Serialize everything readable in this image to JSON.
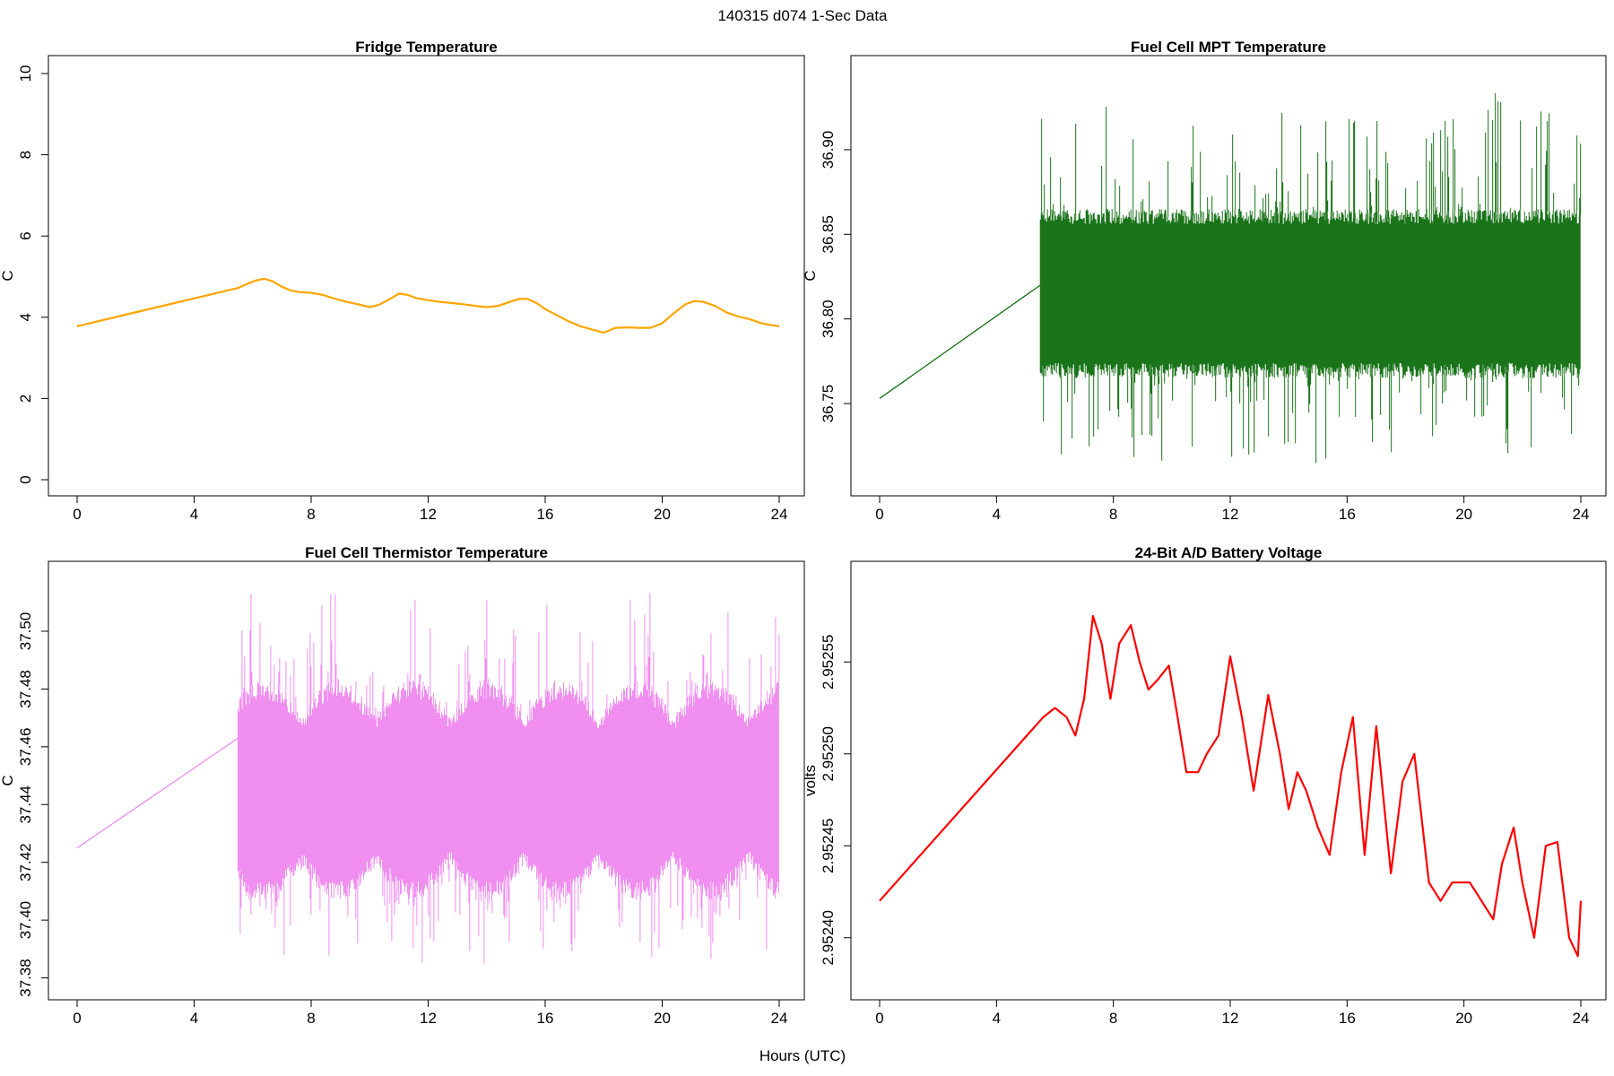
{
  "figure": {
    "suptitle": "140315   d074   1-Sec Data",
    "xlabel": "Hours (UTC)"
  },
  "chart_data": [
    {
      "type": "line",
      "title": "Fridge Temperature",
      "xlabel": "",
      "ylabel": "C",
      "color": "#FFA500",
      "xlim": [
        0,
        24
      ],
      "ylim": [
        0,
        10
      ],
      "xticks": [
        "0",
        "4",
        "8",
        "12",
        "16",
        "20",
        "24"
      ],
      "yticks": [
        "0",
        "2",
        "4",
        "6",
        "8",
        "10"
      ],
      "series": [
        {
          "x": [
            0,
            5.5,
            5.8,
            6.1,
            6.4,
            6.7,
            7.0,
            7.3,
            7.6,
            8.0,
            8.4,
            8.8,
            9.2,
            9.6,
            10.0,
            10.3,
            10.7,
            11.0,
            11.3,
            11.6,
            12.0,
            12.4,
            12.8,
            13.2,
            13.6,
            14.0,
            14.4,
            14.8,
            15.1,
            15.4,
            15.7,
            16.0,
            16.4,
            16.8,
            17.2,
            17.6,
            18.0,
            18.4,
            18.8,
            19.2,
            19.6,
            20.0,
            20.4,
            20.8,
            21.1,
            21.4,
            21.8,
            22.2,
            22.6,
            23.0,
            23.4,
            23.8,
            24.0
          ],
          "y": [
            3.78,
            4.72,
            4.82,
            4.9,
            4.95,
            4.88,
            4.75,
            4.66,
            4.62,
            4.6,
            4.55,
            4.46,
            4.38,
            4.32,
            4.25,
            4.3,
            4.45,
            4.58,
            4.55,
            4.47,
            4.42,
            4.38,
            4.35,
            4.32,
            4.28,
            4.25,
            4.28,
            4.38,
            4.45,
            4.45,
            4.35,
            4.2,
            4.05,
            3.9,
            3.78,
            3.7,
            3.62,
            3.74,
            3.75,
            3.74,
            3.74,
            3.85,
            4.1,
            4.32,
            4.4,
            4.38,
            4.28,
            4.12,
            4.02,
            3.95,
            3.85,
            3.8,
            3.78
          ]
        }
      ]
    },
    {
      "type": "line",
      "title": "Fuel Cell MPT Temperature",
      "xlabel": "",
      "ylabel": "C",
      "color": "#006400",
      "xlim": [
        0,
        24
      ],
      "ylim": [
        36.705,
        36.945
      ],
      "xticks": [
        "0",
        "4",
        "8",
        "12",
        "16",
        "20",
        "24"
      ],
      "yticks": [
        "36.75",
        "36.80",
        "36.85",
        "36.90"
      ],
      "series": [
        {
          "x": [
            0,
            5.5,
            24.0
          ],
          "y": [
            36.753,
            36.82,
            36.818
          ],
          "noise_band": {
            "x_from": 5.5,
            "x_to": 24.0,
            "center": 36.815,
            "dense_low": 36.765,
            "dense_high": 36.865,
            "spike_max": 36.937,
            "spike_min": 36.712
          }
        }
      ]
    },
    {
      "type": "line",
      "title": "Fuel Cell Thermistor Temperature",
      "xlabel": "",
      "ylabel": "C",
      "color": "#EE82EE",
      "xlim": [
        0,
        24
      ],
      "ylim": [
        37.378,
        37.518
      ],
      "xticks": [
        "0",
        "4",
        "8",
        "12",
        "16",
        "20",
        "24"
      ],
      "yticks": [
        "37.38",
        "37.40",
        "37.42",
        "37.44",
        "37.46",
        "37.48",
        "37.50"
      ],
      "series": [
        {
          "x": [
            0,
            5.5,
            24.0
          ],
          "y": [
            37.425,
            37.463,
            37.445
          ],
          "noise_band": {
            "x_from": 5.5,
            "x_to": 24.0,
            "center": 37.445,
            "dense_low": 37.41,
            "dense_high": 37.48,
            "spike_max": 37.513,
            "spike_min": 37.385
          }
        }
      ]
    },
    {
      "type": "line",
      "title": "24-Bit A/D Battery Voltage",
      "xlabel": "",
      "ylabel": "volts",
      "color": "#FF0000",
      "xlim": [
        0,
        24
      ],
      "ylim": [
        2.952375,
        2.952595
      ],
      "xticks": [
        "0",
        "4",
        "8",
        "12",
        "16",
        "20",
        "24"
      ],
      "yticks": [
        "2.95240",
        "2.95245",
        "2.95250",
        "2.95255"
      ],
      "series": [
        {
          "x": [
            0,
            5.6,
            6.0,
            6.4,
            6.7,
            7.0,
            7.3,
            7.6,
            7.9,
            8.2,
            8.6,
            8.9,
            9.2,
            9.5,
            9.9,
            10.2,
            10.5,
            10.9,
            11.2,
            11.6,
            12.0,
            12.4,
            12.8,
            13.3,
            13.7,
            14.0,
            14.3,
            14.6,
            15.0,
            15.4,
            15.8,
            16.2,
            16.6,
            17.0,
            17.5,
            17.9,
            18.3,
            18.8,
            19.2,
            19.6,
            20.2,
            20.6,
            21.0,
            21.3,
            21.7,
            22.0,
            22.4,
            22.8,
            23.2,
            23.6,
            23.9,
            24.0
          ],
          "y": [
            2.95242,
            2.95252,
            2.952525,
            2.95252,
            2.95251,
            2.95253,
            2.952575,
            2.95256,
            2.95253,
            2.95256,
            2.95257,
            2.95255,
            2.952535,
            2.95254,
            2.952548,
            2.95252,
            2.95249,
            2.95249,
            2.9525,
            2.95251,
            2.952553,
            2.95252,
            2.95248,
            2.952532,
            2.9525,
            2.95247,
            2.95249,
            2.95248,
            2.95246,
            2.952445,
            2.95249,
            2.95252,
            2.952445,
            2.952515,
            2.952435,
            2.952485,
            2.9525,
            2.95243,
            2.95242,
            2.95243,
            2.95243,
            2.95242,
            2.95241,
            2.95244,
            2.95246,
            2.95243,
            2.9524,
            2.95245,
            2.952452,
            2.9524,
            2.95239,
            2.95242
          ]
        }
      ]
    }
  ]
}
